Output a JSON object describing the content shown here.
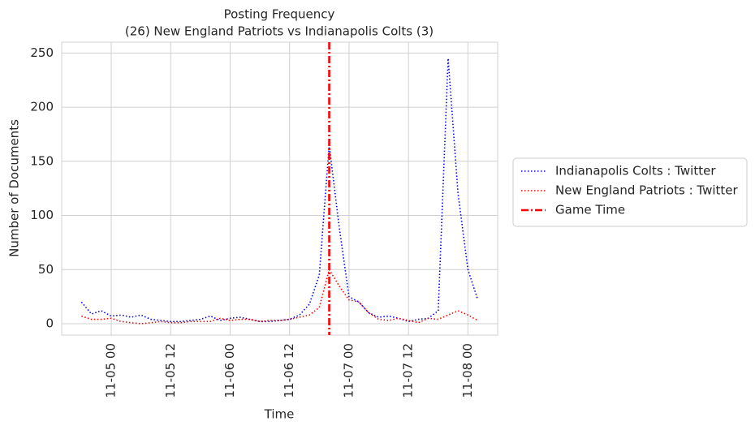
{
  "chart_data": {
    "type": "line",
    "title": "Posting Frequency",
    "subtitle": "(26) New England Patriots vs Indianapolis Colts (3)",
    "xlabel": "Time",
    "ylabel": "Number of Documents",
    "x": [
      "11-04 18",
      "11-04 20",
      "11-04 22",
      "11-05 00",
      "11-05 02",
      "11-05 04",
      "11-05 06",
      "11-05 08",
      "11-05 10",
      "11-05 12",
      "11-05 14",
      "11-05 16",
      "11-05 18",
      "11-05 20",
      "11-05 22",
      "11-06 00",
      "11-06 02",
      "11-06 04",
      "11-06 06",
      "11-06 08",
      "11-06 10",
      "11-06 12",
      "11-06 14",
      "11-06 16",
      "11-06 18",
      "11-06 20",
      "11-06 22",
      "11-07 00",
      "11-07 02",
      "11-07 04",
      "11-07 06",
      "11-07 08",
      "11-07 10",
      "11-07 12",
      "11-07 14",
      "11-07 16",
      "11-07 18",
      "11-07 20",
      "11-07 22",
      "11-08 00",
      "11-08 02"
    ],
    "series": [
      {
        "name": "Indianapolis Colts : Twitter",
        "color": "#0000ff",
        "style": "dotted",
        "values": [
          20,
          9,
          12,
          7,
          8,
          6,
          8,
          4,
          3,
          2,
          2,
          3,
          4,
          7,
          3,
          5,
          6,
          4,
          2,
          2,
          3,
          4,
          8,
          18,
          45,
          165,
          90,
          25,
          20,
          10,
          6,
          7,
          5,
          2,
          4,
          5,
          12,
          245,
          120,
          50,
          22
        ]
      },
      {
        "name": "New England Patriots : Twitter",
        "color": "#ff0000",
        "style": "dotted",
        "values": [
          7,
          4,
          4,
          5,
          2,
          1,
          0,
          1,
          2,
          1,
          1,
          2,
          2,
          2,
          5,
          3,
          4,
          4,
          2,
          3,
          3,
          4,
          6,
          8,
          15,
          50,
          35,
          22,
          20,
          10,
          4,
          3,
          5,
          3,
          1,
          5,
          4,
          8,
          12,
          8,
          3
        ]
      }
    ],
    "vlines": [
      {
        "name": "Game Time",
        "x": "11-06 20",
        "color": "#ff0000"
      }
    ],
    "xlim": [
      "11-04 14",
      "11-08 06"
    ],
    "xticks": [
      "11-05 00",
      "11-05 12",
      "11-06 00",
      "11-06 12",
      "11-07 00",
      "11-07 12",
      "11-08 00"
    ],
    "ylim": [
      -10.5,
      260
    ],
    "yticks": [
      0,
      50,
      100,
      150,
      200,
      250
    ],
    "grid": true,
    "legend": "outside right"
  }
}
